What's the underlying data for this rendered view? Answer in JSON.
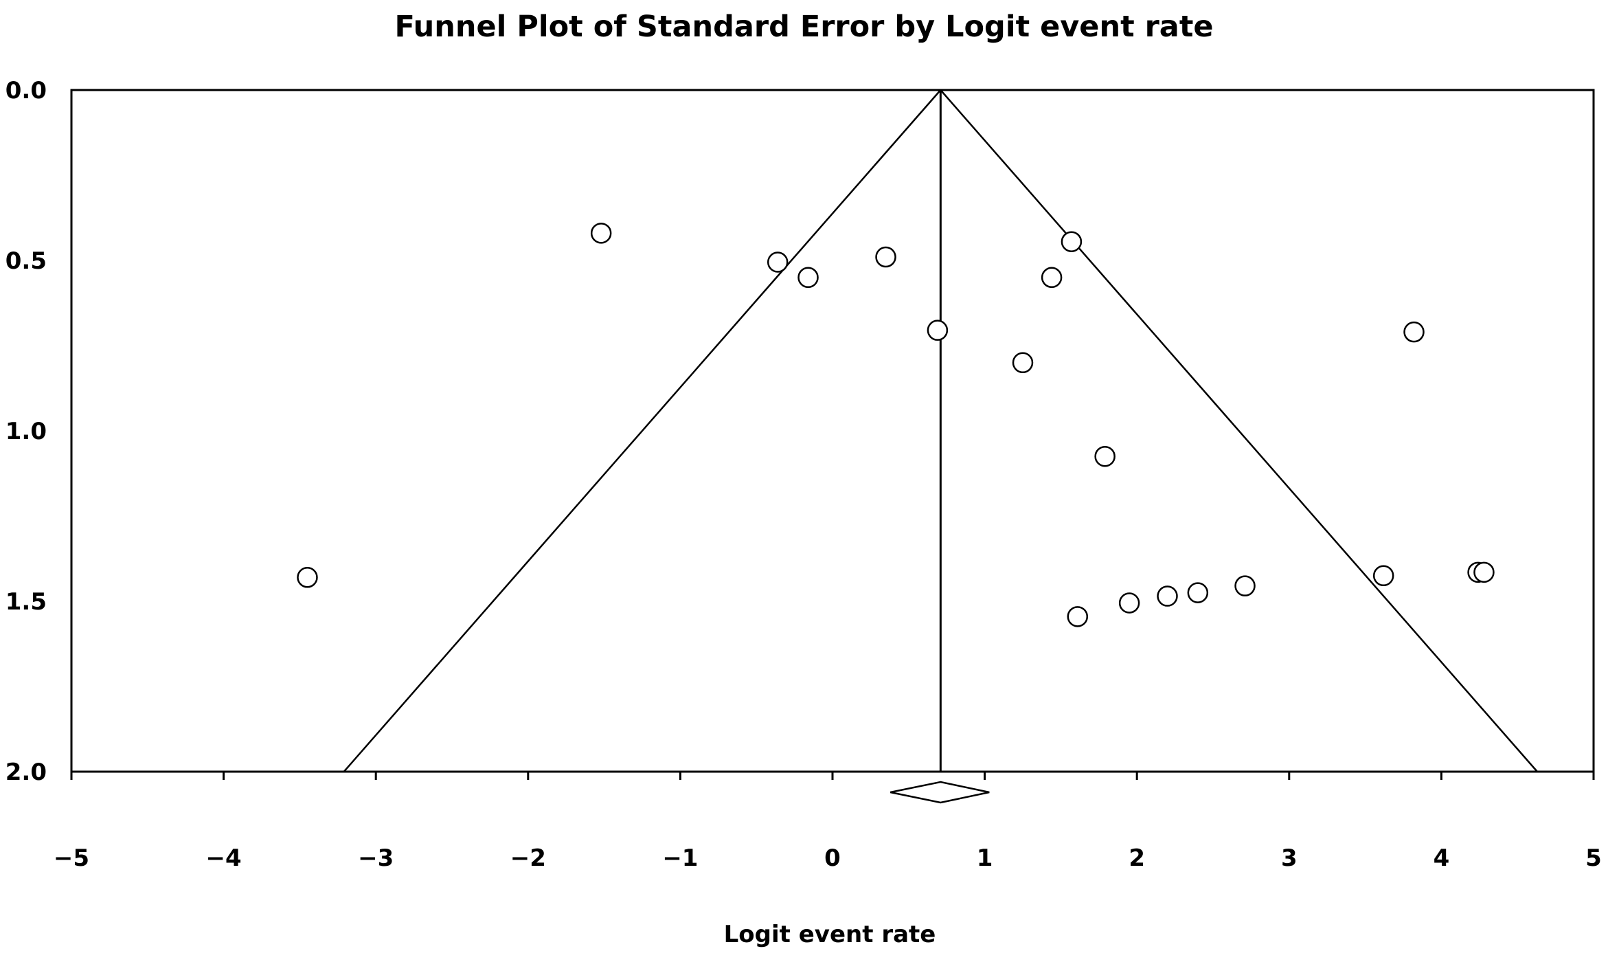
{
  "chart_data": {
    "type": "scatter",
    "title": "Funnel Plot of Standard Error by Logit event rate",
    "xlabel": "Logit event rate",
    "ylabel": "",
    "xlim": [
      -5,
      5
    ],
    "ylim": [
      0,
      2
    ],
    "y_inverted": true,
    "x_ticks": [
      -5,
      -4,
      -3,
      -2,
      -1,
      0,
      1,
      2,
      3,
      4,
      5
    ],
    "x_tick_labels": [
      "−5",
      "−4",
      "−3",
      "−2",
      "−1",
      "0",
      "1",
      "2",
      "3",
      "4",
      "5"
    ],
    "y_ticks": [
      0,
      0.5,
      1,
      1.5,
      2
    ],
    "y_tick_labels": [
      "0.0",
      "0.5",
      "1.0",
      "1.5",
      "2.0"
    ],
    "grid": false,
    "summary_effect": 0.71,
    "funnel_limits_at_max_se": [
      -3.21,
      4.63
    ],
    "diamond": {
      "center": 0.71,
      "lower": 0.38,
      "upper": 1.03
    },
    "points": [
      {
        "x": -3.45,
        "y": 1.43
      },
      {
        "x": -1.52,
        "y": 0.42
      },
      {
        "x": -0.36,
        "y": 0.505
      },
      {
        "x": -0.16,
        "y": 0.55
      },
      {
        "x": 0.35,
        "y": 0.49
      },
      {
        "x": 0.69,
        "y": 0.705
      },
      {
        "x": 1.25,
        "y": 0.8
      },
      {
        "x": 1.44,
        "y": 0.55
      },
      {
        "x": 1.57,
        "y": 0.445
      },
      {
        "x": 1.79,
        "y": 1.075
      },
      {
        "x": 1.61,
        "y": 1.545
      },
      {
        "x": 1.95,
        "y": 1.505
      },
      {
        "x": 2.2,
        "y": 1.485
      },
      {
        "x": 2.4,
        "y": 1.475
      },
      {
        "x": 2.71,
        "y": 1.455
      },
      {
        "x": 3.62,
        "y": 1.425
      },
      {
        "x": 3.82,
        "y": 0.71
      },
      {
        "x": 4.24,
        "y": 1.415
      },
      {
        "x": 4.28,
        "y": 1.415
      }
    ],
    "colors": {
      "line": "#000000",
      "marker_fill": "#ffffff",
      "marker_stroke": "#000000"
    }
  }
}
